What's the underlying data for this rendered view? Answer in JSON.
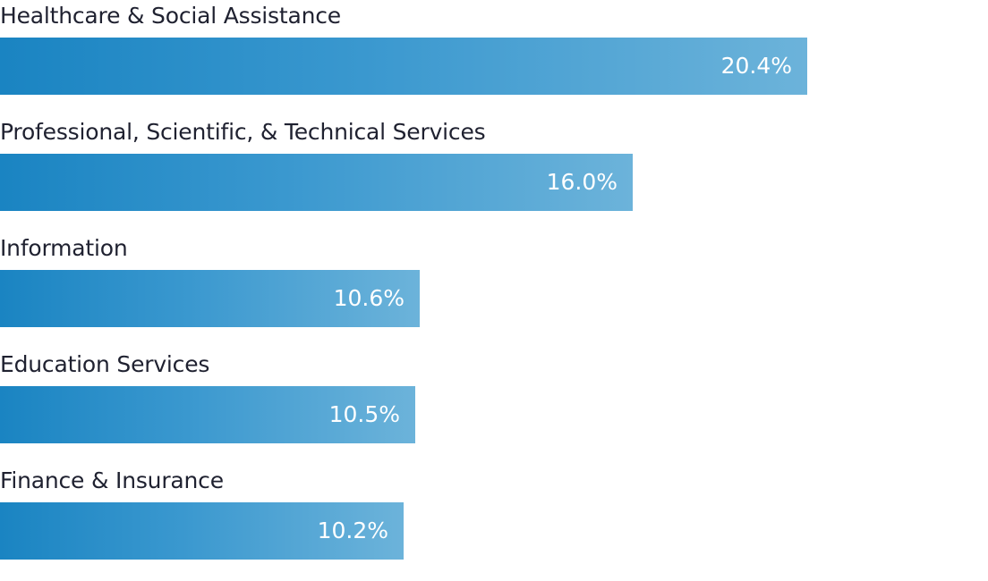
{
  "chart_data": {
    "type": "bar",
    "orientation": "horizontal",
    "categories": [
      "Healthcare & Social Assistance",
      "Professional, Scientific, & Technical Services",
      "Information",
      "Education Services",
      "Finance & Insurance"
    ],
    "values": [
      20.4,
      16.0,
      10.6,
      10.5,
      10.2
    ],
    "value_labels": [
      "20.4%",
      "16.0%",
      "10.6%",
      "10.5%",
      "10.2%"
    ],
    "unit": "%",
    "title": "",
    "xlabel": "",
    "ylabel": "",
    "xlim": [
      0,
      25
    ],
    "grid": false,
    "legend": "none",
    "colors": {
      "bar_start": "#1a84c2",
      "bar_end": "#6cb3da",
      "label_text": "#1f2130",
      "value_text": "#ffffff"
    }
  }
}
